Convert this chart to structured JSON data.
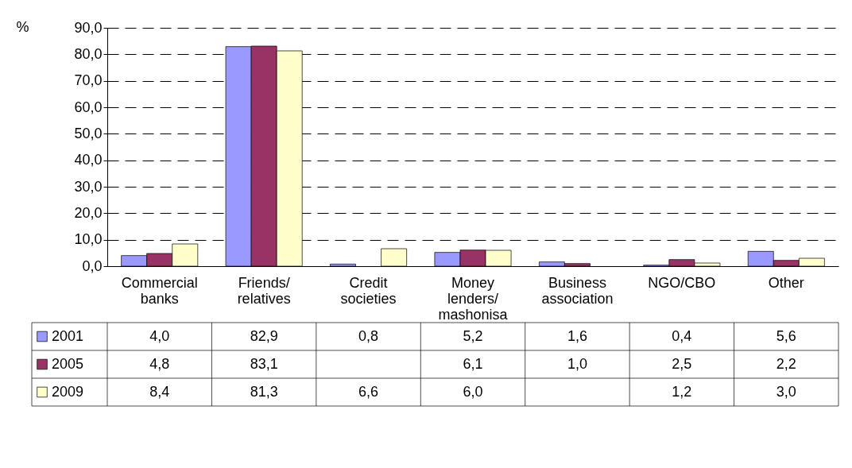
{
  "chart_data": {
    "type": "bar",
    "ylabel": "%",
    "categories": [
      "Commercial banks",
      "Friends/ relatives",
      "Credit societies",
      "Money lenders/ mashonisa",
      "Business association",
      "NGO/CBO",
      "Other"
    ],
    "series": [
      {
        "name": "2001",
        "color": "#9999ff",
        "values": [
          4.0,
          82.9,
          0.8,
          5.2,
          1.6,
          0.4,
          5.6
        ],
        "value_labels": [
          "4,0",
          "82,9",
          "0,8",
          "5,2",
          "1,6",
          "0,4",
          "5,6"
        ]
      },
      {
        "name": "2005",
        "color": "#993366",
        "values": [
          4.8,
          83.1,
          null,
          6.1,
          1.0,
          2.5,
          2.2
        ],
        "value_labels": [
          "4,8",
          "83,1",
          null,
          "6,1",
          "1,0",
          "2,5",
          "2,2"
        ]
      },
      {
        "name": "2009",
        "color": "#ffffcc",
        "values": [
          8.4,
          81.3,
          6.6,
          6.0,
          null,
          1.2,
          3.0
        ],
        "value_labels": [
          "8,4",
          "81,3",
          "6,6",
          "6,0",
          null,
          "1,2",
          "3,0"
        ]
      }
    ],
    "ylim": [
      0,
      90
    ],
    "yticks": [
      {
        "value": 0,
        "label": "0,0"
      },
      {
        "value": 10,
        "label": "10,0"
      },
      {
        "value": 20,
        "label": "20,0"
      },
      {
        "value": 30,
        "label": "30,0"
      },
      {
        "value": 40,
        "label": "40,0"
      },
      {
        "value": 50,
        "label": "50,0"
      },
      {
        "value": 60,
        "label": "60,0"
      },
      {
        "value": 70,
        "label": "70,0"
      },
      {
        "value": 80,
        "label": "80,0"
      },
      {
        "value": 90,
        "label": "90,0"
      }
    ],
    "grid": "y",
    "line_style": "dashed",
    "legend": "bottom left"
  }
}
